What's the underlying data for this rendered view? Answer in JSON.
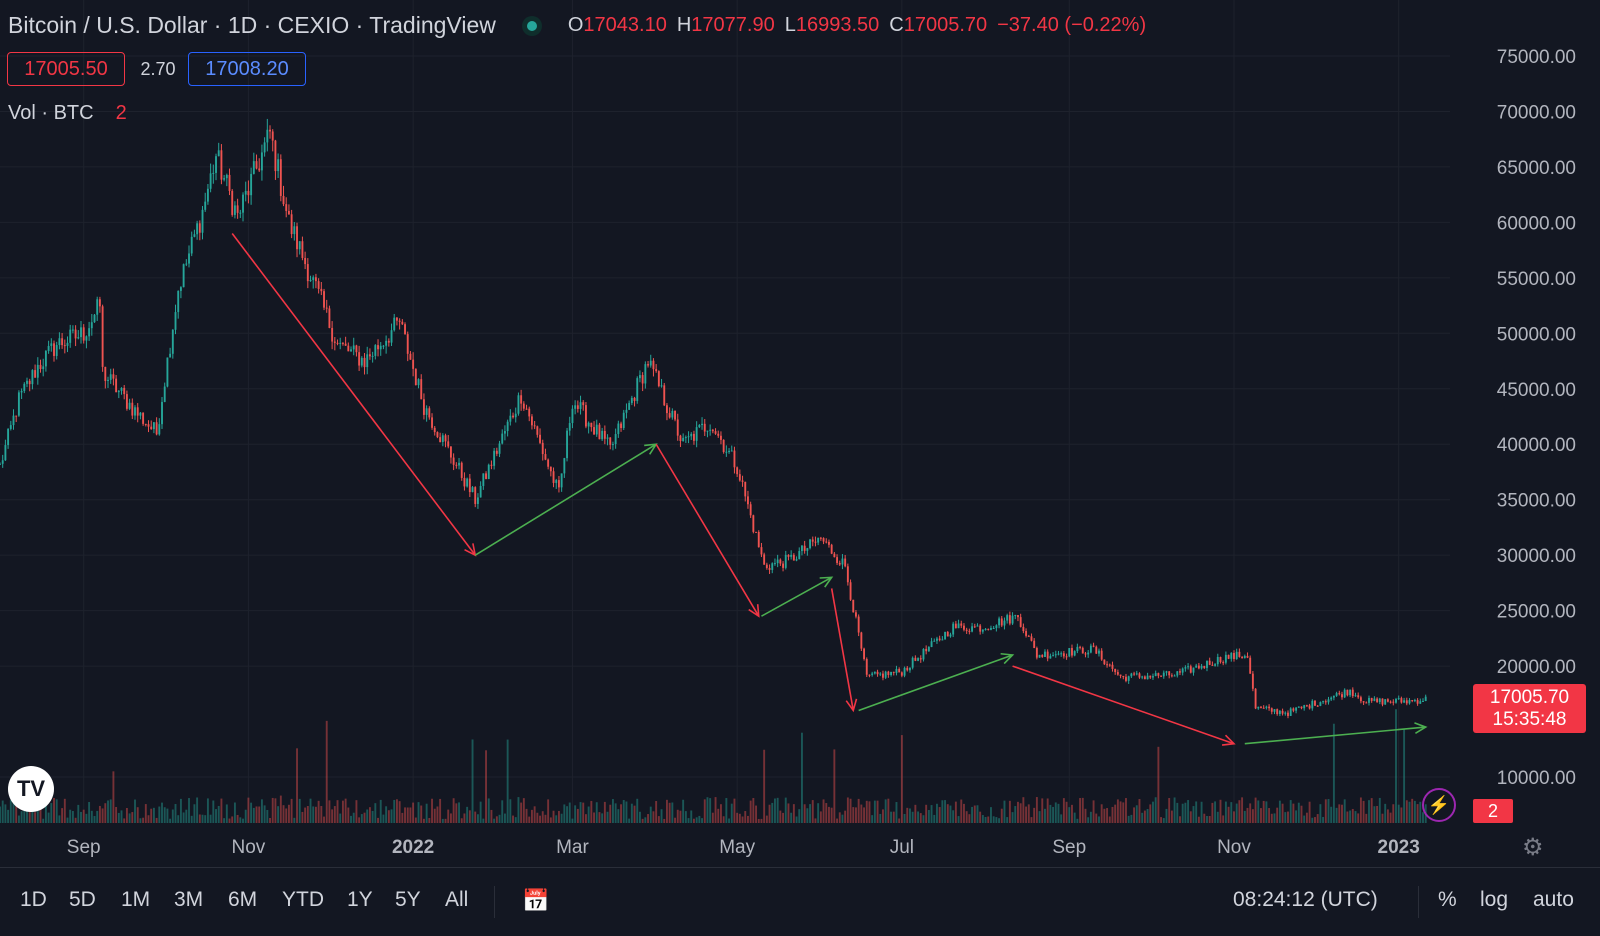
{
  "header": {
    "title": "Bitcoin / U.S. Dollar · 1D · CEXIO · TradingView",
    "ohlc": [
      {
        "key": "O",
        "value": "17043.10"
      },
      {
        "key": "H",
        "value": "17077.90"
      },
      {
        "key": "L",
        "value": "16993.50"
      },
      {
        "key": "C",
        "value": "17005.70"
      }
    ],
    "change": "−37.40 (−0.22%)"
  },
  "quote": {
    "bid": "17005.50",
    "spread": "2.70",
    "ask": "17008.20"
  },
  "volume_legend": {
    "label": "Vol · BTC",
    "value": "2"
  },
  "price_scale": {
    "last_price": "17005.70",
    "countdown": "15:35:48",
    "volume_badge": "2"
  },
  "toolbar": {
    "timeframes": [
      "1D",
      "5D",
      "1M",
      "3M",
      "6M",
      "YTD",
      "1Y",
      "5Y",
      "All"
    ],
    "clock": "08:24:12 (UTC)",
    "percent": "%",
    "log": "log",
    "auto": "auto"
  },
  "colors": {
    "up": "#26a69a",
    "down": "#ef5350",
    "background": "#131722",
    "grid": "#1e222d"
  },
  "chart_data": {
    "type": "candlestick",
    "title": "Bitcoin / U.S. Dollar · 1D · CEXIO · TradingView",
    "y_axis": {
      "position": "right",
      "ticks": [
        "75000.00",
        "70000.00",
        "65000.00",
        "60000.00",
        "55000.00",
        "50000.00",
        "45000.00",
        "40000.00",
        "35000.00",
        "30000.00",
        "25000.00",
        "20000.00",
        "10000.00"
      ],
      "ylim": [
        5000,
        78000
      ]
    },
    "x_axis": {
      "ticks": [
        "Sep",
        "Nov",
        "2022",
        "Mar",
        "May",
        "Jul",
        "Sep",
        "Nov",
        "2023"
      ],
      "range": [
        "2021-08-01",
        "2023-01-20"
      ]
    },
    "grid": true,
    "price_path": [
      [
        "2021-08-01",
        38000
      ],
      [
        "2021-08-08",
        44000
      ],
      [
        "2021-08-15",
        47000
      ],
      [
        "2021-08-22",
        49000
      ],
      [
        "2021-09-01",
        50000
      ],
      [
        "2021-09-07",
        52500
      ],
      [
        "2021-09-08",
        46500
      ],
      [
        "2021-09-20",
        43000
      ],
      [
        "2021-09-28",
        41000
      ],
      [
        "2021-10-06",
        54000
      ],
      [
        "2021-10-15",
        61000
      ],
      [
        "2021-10-20",
        66000
      ],
      [
        "2021-10-28",
        60500
      ],
      [
        "2021-11-09",
        68000
      ],
      [
        "2021-11-16",
        60000
      ],
      [
        "2021-11-26",
        54000
      ],
      [
        "2021-12-04",
        49000
      ],
      [
        "2021-12-14",
        47500
      ],
      [
        "2021-12-27",
        51000
      ],
      [
        "2022-01-05",
        43500
      ],
      [
        "2022-01-24",
        35000
      ],
      [
        "2022-02-10",
        44500
      ],
      [
        "2022-02-24",
        35500
      ],
      [
        "2022-03-01",
        44000
      ],
      [
        "2022-03-15",
        39500
      ],
      [
        "2022-03-29",
        47500
      ],
      [
        "2022-04-11",
        40000
      ],
      [
        "2022-04-21",
        42000
      ],
      [
        "2022-05-01",
        38000
      ],
      [
        "2022-05-11",
        29000
      ],
      [
        "2022-05-20",
        29500
      ],
      [
        "2022-06-01",
        31500
      ],
      [
        "2022-06-10",
        29000
      ],
      [
        "2022-06-18",
        19000
      ],
      [
        "2022-07-01",
        19500
      ],
      [
        "2022-07-20",
        23500
      ],
      [
        "2022-07-31",
        23500
      ],
      [
        "2022-08-13",
        24500
      ],
      [
        "2022-08-20",
        21000
      ],
      [
        "2022-09-10",
        21500
      ],
      [
        "2022-09-20",
        19000
      ],
      [
        "2022-10-10",
        19200
      ],
      [
        "2022-10-29",
        20800
      ],
      [
        "2022-11-06",
        21000
      ],
      [
        "2022-11-09",
        16200
      ],
      [
        "2022-11-21",
        15800
      ],
      [
        "2022-12-05",
        17000
      ],
      [
        "2022-12-14",
        17800
      ],
      [
        "2022-12-20",
        16800
      ],
      [
        "2023-01-05",
        16850
      ],
      [
        "2023-01-11",
        17005.7
      ]
    ],
    "annotations": [
      {
        "type": "arrow",
        "color": "down",
        "from": [
          "2021-10-26",
          59000
        ],
        "to": [
          "2022-01-24",
          30000
        ]
      },
      {
        "type": "arrow",
        "color": "up",
        "from": [
          "2022-01-24",
          30000
        ],
        "to": [
          "2022-04-01",
          40000
        ]
      },
      {
        "type": "arrow",
        "color": "down",
        "from": [
          "2022-04-01",
          40000
        ],
        "to": [
          "2022-05-09",
          24500
        ]
      },
      {
        "type": "arrow",
        "color": "up",
        "from": [
          "2022-05-10",
          24500
        ],
        "to": [
          "2022-06-05",
          28000
        ]
      },
      {
        "type": "arrow",
        "color": "down",
        "from": [
          "2022-06-05",
          27000
        ],
        "to": [
          "2022-06-13",
          16000
        ]
      },
      {
        "type": "arrow",
        "color": "up",
        "from": [
          "2022-06-15",
          16000
        ],
        "to": [
          "2022-08-11",
          21000
        ]
      },
      {
        "type": "arrow",
        "color": "down",
        "from": [
          "2022-08-11",
          20000
        ],
        "to": [
          "2022-11-01",
          13000
        ]
      },
      {
        "type": "arrow",
        "color": "up",
        "from": [
          "2022-11-05",
          13000
        ],
        "to": [
          "2023-01-11",
          14500
        ]
      }
    ]
  }
}
